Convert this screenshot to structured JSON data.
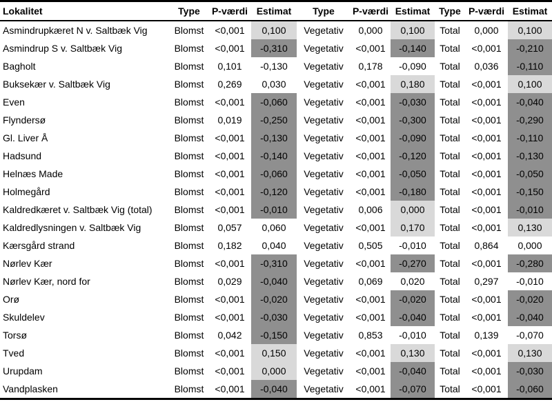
{
  "table": {
    "headers": [
      {
        "label": "Lokalitet"
      },
      {
        "label": "Type"
      },
      {
        "label": "P-værdi"
      },
      {
        "label": "Estimat"
      },
      {
        "label": "Type"
      },
      {
        "label": "P-værdi"
      },
      {
        "label": "Estimat"
      },
      {
        "label": "Type"
      },
      {
        "label": "P-værdi"
      },
      {
        "label": "Estimat"
      }
    ],
    "shade_colors": {
      "light": "#d9d9d9",
      "dark": "#8f8f8f",
      "none": "#ffffff"
    },
    "rows": [
      {
        "lokalitet": "Asmindrupkæret N v. Saltbæk Vig",
        "groups": [
          {
            "type": "Blomst",
            "p": "<0,001",
            "est": "0,100",
            "shade": "light"
          },
          {
            "type": "Vegetativ",
            "p": "0,000",
            "est": "0,100",
            "shade": "light"
          },
          {
            "type": "Total",
            "p": "0,000",
            "est": "0,100",
            "shade": "light"
          }
        ]
      },
      {
        "lokalitet": "Asmindrup S v. Saltbæk Vig",
        "groups": [
          {
            "type": "Blomst",
            "p": "<0,001",
            "est": "-0,310",
            "shade": "dark"
          },
          {
            "type": "Vegetativ",
            "p": "<0,001",
            "est": "-0,140",
            "shade": "dark"
          },
          {
            "type": "Total",
            "p": "<0,001",
            "est": "-0,210",
            "shade": "dark"
          }
        ]
      },
      {
        "lokalitet": "Bagholt",
        "groups": [
          {
            "type": "Blomst",
            "p": "0,101",
            "est": "-0,130",
            "shade": "none"
          },
          {
            "type": "Vegetativ",
            "p": "0,178",
            "est": "-0,090",
            "shade": "none"
          },
          {
            "type": "Total",
            "p": "0,036",
            "est": "-0,110",
            "shade": "dark"
          }
        ]
      },
      {
        "lokalitet": "Buksekær v. Saltbæk Vig",
        "groups": [
          {
            "type": "Blomst",
            "p": "0,269",
            "est": "0,030",
            "shade": "none"
          },
          {
            "type": "Vegetativ",
            "p": "<0,001",
            "est": "0,180",
            "shade": "light"
          },
          {
            "type": "Total",
            "p": "<0,001",
            "est": "0,100",
            "shade": "light"
          }
        ]
      },
      {
        "lokalitet": "Even",
        "groups": [
          {
            "type": "Blomst",
            "p": "<0,001",
            "est": "-0,060",
            "shade": "dark"
          },
          {
            "type": "Vegetativ",
            "p": "<0,001",
            "est": "-0,030",
            "shade": "dark"
          },
          {
            "type": "Total",
            "p": "<0,001",
            "est": "-0,040",
            "shade": "dark"
          }
        ]
      },
      {
        "lokalitet": "Flyndersø",
        "groups": [
          {
            "type": "Blomst",
            "p": "0,019",
            "est": "-0,250",
            "shade": "dark"
          },
          {
            "type": "Vegetativ",
            "p": "<0,001",
            "est": "-0,300",
            "shade": "dark"
          },
          {
            "type": "Total",
            "p": "<0,001",
            "est": "-0,290",
            "shade": "dark"
          }
        ]
      },
      {
        "lokalitet": "Gl. Liver Å",
        "groups": [
          {
            "type": "Blomst",
            "p": "<0,001",
            "est": "-0,130",
            "shade": "dark"
          },
          {
            "type": "Vegetativ",
            "p": "<0,001",
            "est": "-0,090",
            "shade": "dark"
          },
          {
            "type": "Total",
            "p": "<0,001",
            "est": "-0,110",
            "shade": "dark"
          }
        ]
      },
      {
        "lokalitet": "Hadsund",
        "groups": [
          {
            "type": "Blomst",
            "p": "<0,001",
            "est": "-0,140",
            "shade": "dark"
          },
          {
            "type": "Vegetativ",
            "p": "<0,001",
            "est": "-0,120",
            "shade": "dark"
          },
          {
            "type": "Total",
            "p": "<0,001",
            "est": "-0,130",
            "shade": "dark"
          }
        ]
      },
      {
        "lokalitet": "Helnæs Made",
        "groups": [
          {
            "type": "Blomst",
            "p": "<0,001",
            "est": "-0,060",
            "shade": "dark"
          },
          {
            "type": "Vegetativ",
            "p": "<0,001",
            "est": "-0,050",
            "shade": "dark"
          },
          {
            "type": "Total",
            "p": "<0,001",
            "est": "-0,050",
            "shade": "dark"
          }
        ]
      },
      {
        "lokalitet": "Holmegård",
        "groups": [
          {
            "type": "Blomst",
            "p": "<0,001",
            "est": "-0,120",
            "shade": "dark"
          },
          {
            "type": "Vegetativ",
            "p": "<0,001",
            "est": "-0,180",
            "shade": "dark"
          },
          {
            "type": "Total",
            "p": "<0,001",
            "est": "-0,150",
            "shade": "dark"
          }
        ]
      },
      {
        "lokalitet": "Kaldredkæret v. Saltbæk Vig (total)",
        "groups": [
          {
            "type": "Blomst",
            "p": "<0,001",
            "est": "-0,010",
            "shade": "dark"
          },
          {
            "type": "Vegetativ",
            "p": "0,006",
            "est": "0,000",
            "shade": "light"
          },
          {
            "type": "Total",
            "p": "<0,001",
            "est": "-0,010",
            "shade": "dark"
          }
        ]
      },
      {
        "lokalitet": "Kaldredlysningen v. Saltbæk Vig",
        "groups": [
          {
            "type": "Blomst",
            "p": "0,057",
            "est": "0,060",
            "shade": "none"
          },
          {
            "type": "Vegetativ",
            "p": "<0,001",
            "est": "0,170",
            "shade": "light"
          },
          {
            "type": "Total",
            "p": "<0,001",
            "est": "0,130",
            "shade": "light"
          }
        ]
      },
      {
        "lokalitet": "Kærsgård strand",
        "groups": [
          {
            "type": "Blomst",
            "p": "0,182",
            "est": "0,040",
            "shade": "none"
          },
          {
            "type": "Vegetativ",
            "p": "0,505",
            "est": "-0,010",
            "shade": "none"
          },
          {
            "type": "Total",
            "p": "0,864",
            "est": "0,000",
            "shade": "none"
          }
        ]
      },
      {
        "lokalitet": "Nørlev Kær",
        "groups": [
          {
            "type": "Blomst",
            "p": "<0,001",
            "est": "-0,310",
            "shade": "dark"
          },
          {
            "type": "Vegetativ",
            "p": "<0,001",
            "est": "-0,270",
            "shade": "dark"
          },
          {
            "type": "Total",
            "p": "<0,001",
            "est": "-0,280",
            "shade": "dark"
          }
        ]
      },
      {
        "lokalitet": "Nørlev Kær, nord for",
        "groups": [
          {
            "type": "Blomst",
            "p": "0,029",
            "est": "-0,040",
            "shade": "dark"
          },
          {
            "type": "Vegetativ",
            "p": "0,069",
            "est": "0,020",
            "shade": "none"
          },
          {
            "type": "Total",
            "p": "0,297",
            "est": "-0,010",
            "shade": "none"
          }
        ]
      },
      {
        "lokalitet": "Orø",
        "groups": [
          {
            "type": "Blomst",
            "p": "<0,001",
            "est": "-0,020",
            "shade": "dark"
          },
          {
            "type": "Vegetativ",
            "p": "<0,001",
            "est": "-0,020",
            "shade": "dark"
          },
          {
            "type": "Total",
            "p": "<0,001",
            "est": "-0,020",
            "shade": "dark"
          }
        ]
      },
      {
        "lokalitet": "Skuldelev",
        "groups": [
          {
            "type": "Blomst",
            "p": "<0,001",
            "est": "-0,030",
            "shade": "dark"
          },
          {
            "type": "Vegetativ",
            "p": "<0,001",
            "est": "-0,040",
            "shade": "dark"
          },
          {
            "type": "Total",
            "p": "<0,001",
            "est": "-0,040",
            "shade": "dark"
          }
        ]
      },
      {
        "lokalitet": "Torsø",
        "groups": [
          {
            "type": "Blomst",
            "p": "0,042",
            "est": "-0,150",
            "shade": "dark"
          },
          {
            "type": "Vegetativ",
            "p": "0,853",
            "est": "-0,010",
            "shade": "none"
          },
          {
            "type": "Total",
            "p": "0,139",
            "est": "-0,070",
            "shade": "none"
          }
        ]
      },
      {
        "lokalitet": "Tved",
        "groups": [
          {
            "type": "Blomst",
            "p": "<0,001",
            "est": "0,150",
            "shade": "light"
          },
          {
            "type": "Vegetativ",
            "p": "<0,001",
            "est": "0,130",
            "shade": "light"
          },
          {
            "type": "Total",
            "p": "<0,001",
            "est": "0,130",
            "shade": "light"
          }
        ]
      },
      {
        "lokalitet": "Urupdam",
        "groups": [
          {
            "type": "Blomst",
            "p": "<0,001",
            "est": "0,000",
            "shade": "light"
          },
          {
            "type": "Vegetativ",
            "p": "<0,001",
            "est": "-0,040",
            "shade": "dark"
          },
          {
            "type": "Total",
            "p": "<0,001",
            "est": "-0,030",
            "shade": "dark"
          }
        ]
      },
      {
        "lokalitet": "Vandplasken",
        "groups": [
          {
            "type": "Blomst",
            "p": "<0,001",
            "est": "-0,040",
            "shade": "dark"
          },
          {
            "type": "Vegetativ",
            "p": "<0,001",
            "est": "-0,070",
            "shade": "dark"
          },
          {
            "type": "Total",
            "p": "<0,001",
            "est": "-0,060",
            "shade": "dark"
          }
        ]
      }
    ]
  }
}
